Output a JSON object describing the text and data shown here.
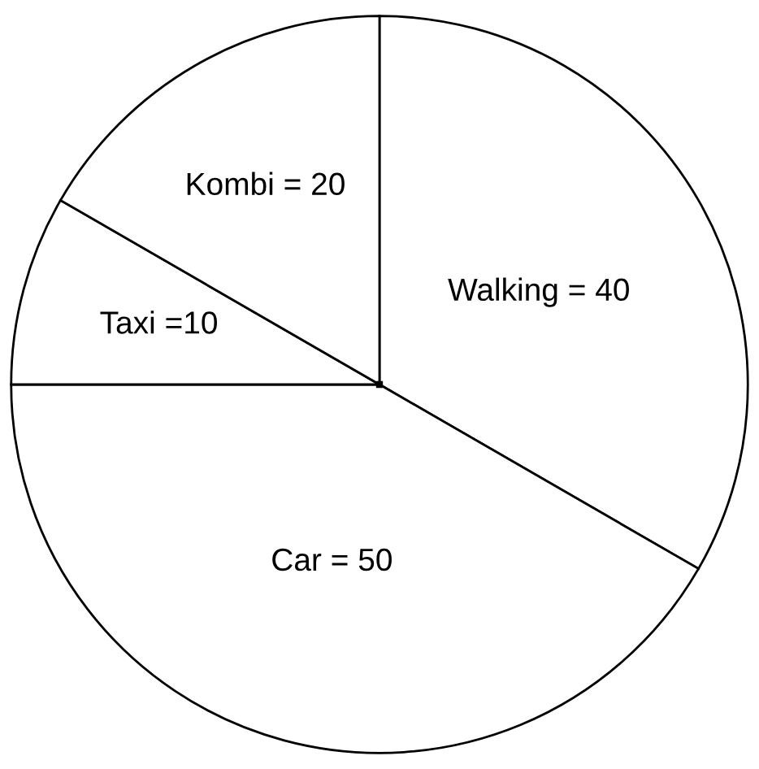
{
  "chart_data": {
    "type": "pie",
    "categories": [
      "Walking = 40",
      "Car = 50",
      "Taxi =10",
      "Kombi = 20"
    ],
    "values": [
      40,
      50,
      10,
      20
    ],
    "colors": [
      "#ffffff",
      "#ffffff",
      "#ffffff",
      "#ffffff"
    ]
  }
}
